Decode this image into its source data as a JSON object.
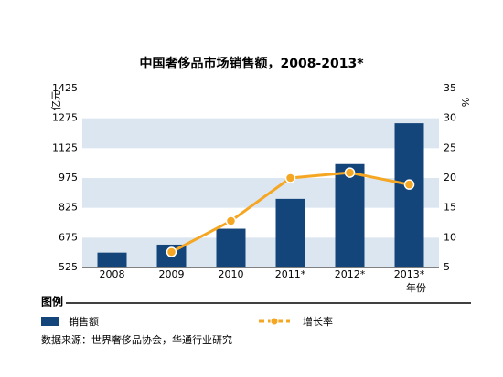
{
  "chart_data": {
    "type": "bar_line",
    "title": "中国奢侈品市场销售额，2008-2013*",
    "y_label": "亿元",
    "y2_label": "%",
    "x_label": "年份",
    "legend_title": "图例",
    "source": "数据来源：世界奢侈品协会，华通行业研究",
    "categories": [
      "2008",
      "2009",
      "2010",
      "2011*",
      "2012*",
      "2013*"
    ],
    "series": [
      {
        "name": "销售额",
        "type": "bar",
        "color": "#14457a",
        "values": [
          600,
          640,
          720,
          870,
          1045,
          1250
        ]
      },
      {
        "name": "增长率",
        "type": "line",
        "axis": "y2",
        "color": "#f5a623",
        "values": [
          null,
          7.6,
          12.8,
          20,
          20.9,
          18.9
        ]
      }
    ],
    "ylim": [
      525,
      1425
    ],
    "yticks": [
      525,
      675,
      825,
      975,
      1125,
      1275,
      1425
    ],
    "y2lim": [
      5,
      35
    ],
    "y2ticks": [
      5,
      10,
      15,
      20,
      25,
      30,
      35
    ],
    "grid": "bands",
    "band_color": "#dce6f0"
  }
}
